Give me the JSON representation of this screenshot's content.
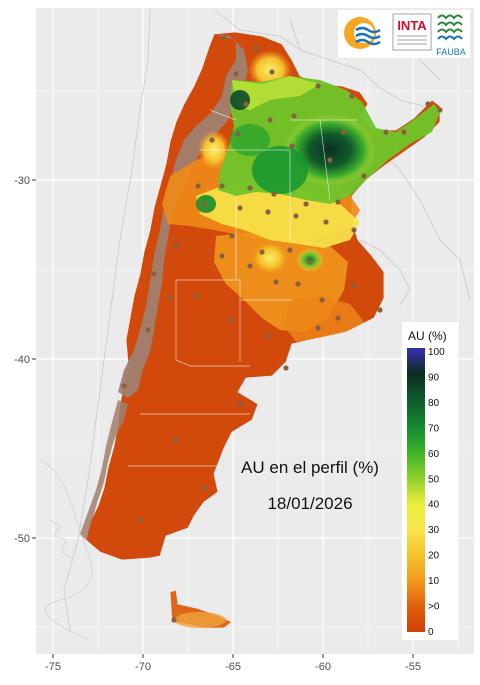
{
  "logos": {
    "inta": "INTA",
    "fauba": "FAUBA",
    "colors": {
      "inta_red": "#c8102e",
      "blue": "#1a73b8",
      "orange": "#f5a623",
      "fauba_green": "#2e8b3d"
    }
  },
  "map": {
    "title": "AU en el perfil (%)",
    "date": "18/01/2026",
    "y_ticks": [
      "-30",
      "-40",
      "-50"
    ],
    "x_ticks": [
      "-75",
      "-70",
      "-65",
      "-60",
      "-55"
    ],
    "colors": {
      "panel_bg": "#ebebeb",
      "grid": "#ffffff",
      "no_data": "#a08070",
      "dry": "#d44a0a",
      "mid": "#f2a518",
      "yellow": "#f7e63c",
      "light_green": "#8fd12b",
      "green": "#1b9a2e",
      "dark_green": "#0a3b2a",
      "station": "#8b6040"
    }
  },
  "legend": {
    "title": "AU (%)",
    "labels": [
      "100",
      "90",
      "80",
      "70",
      "60",
      "50",
      "40",
      "30",
      "20",
      "10",
      ">0",
      "0"
    ],
    "gradient": [
      "#3a2fb0",
      "#0b2e22",
      "#0e5a2c",
      "#178a30",
      "#3cb42a",
      "#8fd12b",
      "#e8f03a",
      "#f7e64a",
      "#f5c12b",
      "#f29a1c",
      "#e05f0d",
      "#d13f06"
    ]
  }
}
